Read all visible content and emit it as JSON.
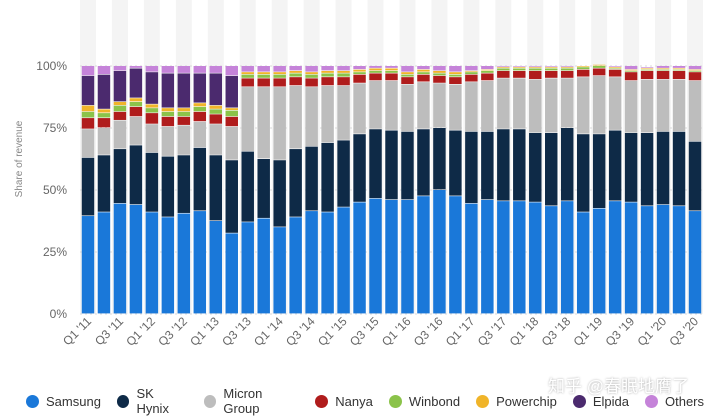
{
  "chart_data": {
    "type": "bar",
    "stacked": true,
    "title": "",
    "xlabel": "",
    "ylabel": "Share of revenue",
    "ylim": [
      0,
      100
    ],
    "yticks": [
      "0%",
      "25%",
      "50%",
      "75%",
      "100%"
    ],
    "categories": [
      "Q1 '11",
      "Q2 '11",
      "Q3 '11",
      "Q4 '11",
      "Q1 '12",
      "Q2 '12",
      "Q3 '12",
      "Q4 '12",
      "Q1 '13",
      "Q2 '13",
      "Q3 '13",
      "Q4 '13",
      "Q1 '14",
      "Q2 '14",
      "Q3 '14",
      "Q4 '14",
      "Q1 '15",
      "Q2 '15",
      "Q3 '15",
      "Q4 '15",
      "Q1 '16",
      "Q2 '16",
      "Q3 '16",
      "Q4 '16",
      "Q1 '17",
      "Q2 '17",
      "Q3 '17",
      "Q4 '17",
      "Q1 '18",
      "Q2 '18",
      "Q3 '18",
      "Q4 '18",
      "Q1 '19",
      "Q2 '19",
      "Q3 '19",
      "Q4 '19",
      "Q1 '20",
      "Q2 '20",
      "Q3 '20"
    ],
    "xtick_labels": [
      "Q1 '11",
      "Q3 '11",
      "Q1 '12",
      "Q3 '12",
      "Q1 '13",
      "Q3 '13",
      "Q1 '14",
      "Q3 '14",
      "Q1 '15",
      "Q3 '15",
      "Q1 '16",
      "Q3 '16",
      "Q1 '17",
      "Q3 '17",
      "Q1 '18",
      "Q3 '18",
      "Q1 '19",
      "Q3 '19",
      "Q1 '20",
      "Q3 '20"
    ],
    "legend_position": "bottom",
    "series": [
      {
        "name": "Samsung",
        "color": "#1a78d9",
        "values": [
          39.5,
          41,
          44.5,
          44,
          41,
          39,
          40.5,
          41.5,
          37.5,
          32.5,
          37,
          38.5,
          35,
          39,
          41.5,
          41,
          43,
          45,
          46.5,
          46,
          46,
          47.5,
          50,
          47.5,
          44.5,
          46,
          45.5,
          45.5,
          45,
          43.5,
          45.5,
          41,
          42.5,
          45.5,
          45,
          43.5,
          44,
          43.5,
          41.5
        ]
      },
      {
        "name": "SK Hynix",
        "color": "#0e2a47",
        "values": [
          23.5,
          23,
          22,
          24,
          24,
          24.5,
          23.5,
          25.5,
          26.5,
          29.5,
          28.5,
          24,
          27,
          27.5,
          26,
          28,
          27,
          27.5,
          28,
          28,
          27.5,
          27,
          25,
          26.5,
          29,
          27.5,
          29,
          29,
          28,
          29.5,
          29.5,
          31.5,
          30,
          28.5,
          28,
          29.5,
          29.5,
          30,
          28
        ]
      },
      {
        "name": "Micron Group",
        "color": "#bdbdbd",
        "values": [
          11.5,
          11,
          11.5,
          11.5,
          11.5,
          12,
          12,
          10.5,
          12.5,
          13.5,
          26,
          29,
          29.5,
          25.5,
          24,
          23,
          22,
          20.5,
          19.5,
          20,
          19,
          19,
          18,
          18.5,
          20,
          20.5,
          20.5,
          20.5,
          21.5,
          22,
          20,
          23,
          23.5,
          21.5,
          21,
          21.5,
          21,
          21,
          24.5
        ]
      },
      {
        "name": "Nanya",
        "color": "#b01c1c",
        "values": [
          4.5,
          4,
          3.5,
          4,
          4.5,
          4,
          3.5,
          4,
          4,
          4,
          3.5,
          3.5,
          3.5,
          3.5,
          3.5,
          3.5,
          3.5,
          3.5,
          3,
          3,
          3,
          3,
          3,
          3,
          3,
          3,
          3,
          3,
          3.5,
          3,
          3,
          3,
          3,
          3,
          3.5,
          3.5,
          3.5,
          3.5,
          3.5
        ]
      },
      {
        "name": "Winbond",
        "color": "#8bc34a",
        "values": [
          2.5,
          2,
          2.5,
          2,
          2,
          2,
          2,
          2,
          2,
          2.5,
          1.5,
          1.5,
          1.5,
          1.5,
          1.5,
          1.5,
          1.5,
          1,
          1,
          1,
          1,
          1,
          1,
          1,
          1,
          1,
          1,
          1,
          1,
          1,
          1,
          1,
          1,
          0.5,
          0.5,
          0.5,
          0.5,
          0.5,
          0.5
        ]
      },
      {
        "name": "Powerchip",
        "color": "#f0b429",
        "values": [
          2.5,
          1.5,
          1.5,
          1.5,
          1.5,
          1.5,
          1.5,
          1.5,
          1.5,
          1,
          1,
          1,
          1,
          1,
          1,
          1,
          1,
          1,
          1,
          1,
          1,
          1,
          1,
          1,
          0.5,
          0.5,
          0.5,
          0.5,
          0.5,
          0.5,
          0.5,
          0.5,
          0.5,
          0.5,
          0.5,
          0.5,
          0.5,
          0.5,
          0.5
        ]
      },
      {
        "name": "Elpida",
        "color": "#4b2a6e",
        "values": [
          12,
          14,
          12.5,
          12,
          13,
          14,
          14,
          12,
          13,
          13,
          0,
          0,
          0,
          0,
          0,
          0,
          0,
          0,
          0,
          0,
          0,
          0,
          0,
          0,
          0,
          0,
          0,
          0,
          0,
          0,
          0,
          0,
          0,
          0,
          0,
          0,
          0,
          0,
          0
        ]
      },
      {
        "name": "Others",
        "color": "#c583d9",
        "values": [
          4,
          3.5,
          2,
          1,
          2.5,
          3,
          3,
          3,
          3,
          4,
          2.5,
          2.5,
          2.5,
          2,
          2.5,
          2,
          2,
          1.5,
          1,
          1,
          2.5,
          1.5,
          2,
          2.5,
          2,
          1.5,
          0.5,
          0.5,
          0.5,
          0.5,
          0.5,
          0,
          0,
          0.5,
          1.5,
          0.5,
          1,
          1,
          1.5
        ]
      }
    ]
  },
  "watermark": "知乎 @春眠地膺了"
}
